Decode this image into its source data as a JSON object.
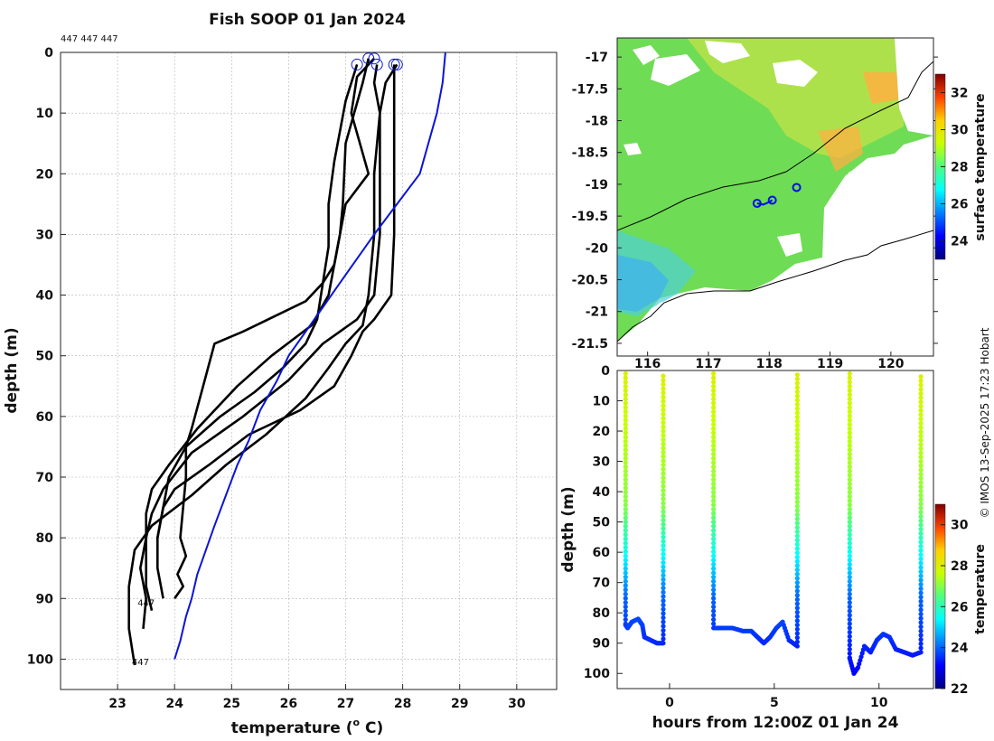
{
  "title": "Fish SOOP 01 Jan 2024",
  "profile_tags": "447 447 447",
  "credit": "© IMOS 13-Sep-2025 17:23 Hobart",
  "colors": {
    "profile": "#000000",
    "climatology": "#0a14d8",
    "grid": "#b4b4b4",
    "land_white": "#ffffff",
    "coast": "#000000"
  },
  "chart_data": [
    {
      "id": "profiles",
      "type": "line",
      "title": "Fish SOOP 01 Jan 2024",
      "xlabel": "temperature (",
      "xlabel_sup": "o",
      "xlabel_end": " C)",
      "ylabel": "depth (m)",
      "xlim": [
        22,
        30.7
      ],
      "ylim": [
        105,
        0
      ],
      "xticks": [
        23,
        24,
        25,
        26,
        27,
        28,
        29,
        30
      ],
      "yticks": [
        0,
        10,
        20,
        30,
        40,
        50,
        60,
        70,
        80,
        90,
        100
      ],
      "grid": true,
      "point_labels": [
        {
          "text": "447",
          "x": 23.35,
          "y": 91.2
        },
        {
          "text": "447",
          "x": 23.25,
          "y": 101
        }
      ],
      "series": [
        {
          "name": "profile 1",
          "x": [
            27.5,
            27.2,
            27.1,
            27.4,
            27.0,
            26.9,
            26.8,
            26.6,
            26.3,
            25.2,
            24.7,
            24.5,
            24.3,
            24.2,
            24.2,
            24.1,
            24.2,
            24.05,
            24.15,
            24.0
          ],
          "y": [
            1,
            4,
            10,
            20,
            25,
            30,
            35,
            38,
            41,
            46,
            48,
            55,
            62,
            65,
            70,
            80,
            83,
            86,
            88,
            90
          ]
        },
        {
          "name": "profile 2",
          "x": [
            27.4,
            27.3,
            27.0,
            26.95,
            26.9,
            26.8,
            26.7,
            26.4,
            25.7,
            25.1,
            24.4,
            23.9,
            23.6,
            23.5,
            23.5,
            23.4,
            23.5,
            23.45
          ],
          "y": [
            1,
            5,
            15,
            25,
            30,
            35,
            40,
            45,
            50,
            55,
            62,
            68,
            72,
            76,
            80,
            85,
            90,
            95
          ]
        },
        {
          "name": "profile 3",
          "x": [
            27.9,
            27.7,
            27.6,
            27.5,
            27.5,
            27.4,
            27.3,
            27.0,
            26.7,
            26.3,
            25.6,
            24.9,
            24.3,
            23.6,
            23.3,
            23.2,
            23.2,
            23.3
          ],
          "y": [
            2,
            5,
            10,
            20,
            30,
            40,
            45,
            48,
            52,
            57,
            63,
            68,
            73,
            78,
            82,
            88,
            95,
            101
          ]
        },
        {
          "name": "profile 4",
          "x": [
            27.55,
            27.5,
            27.6,
            27.6,
            27.6,
            27.5,
            27.2,
            26.6,
            26.0,
            25.2,
            24.3,
            23.8,
            23.6,
            23.5,
            23.5,
            23.5,
            23.6
          ],
          "y": [
            2,
            5,
            10,
            20,
            30,
            40,
            44,
            48,
            54,
            60,
            66,
            72,
            76,
            80,
            84,
            88,
            92
          ]
        },
        {
          "name": "profile 5",
          "x": [
            27.85,
            27.85,
            27.85,
            27.85,
            27.8,
            27.5,
            27.3,
            27.1,
            26.8,
            26.2,
            25.3,
            24.6,
            24.0,
            23.8,
            23.7,
            23.7,
            23.8
          ],
          "y": [
            2,
            10,
            20,
            30,
            40,
            44,
            46,
            50,
            55,
            59,
            63,
            68,
            72,
            75,
            80,
            85,
            90
          ]
        },
        {
          "name": "profile 6",
          "x": [
            27.2,
            27.0,
            26.8,
            26.7,
            26.7,
            26.6,
            26.5,
            26.3,
            25.9,
            25.4,
            24.8,
            24.2,
            23.9,
            23.8,
            23.7
          ],
          "y": [
            2,
            8,
            18,
            25,
            32,
            38,
            44,
            48,
            52,
            56,
            60,
            65,
            70,
            75,
            80
          ]
        },
        {
          "name": "climatology",
          "x": [
            28.75,
            28.7,
            28.6,
            28.3,
            27.9,
            27.5,
            27.2,
            26.9,
            26.6,
            26.3,
            26.0,
            25.8,
            25.5,
            25.3,
            25.1,
            24.9,
            24.7,
            24.55,
            24.4,
            24.3,
            24.2,
            24.1,
            24.0
          ],
          "y": [
            0,
            5,
            10,
            20,
            25,
            30,
            34,
            38,
            42,
            46,
            50,
            54,
            59,
            64,
            68,
            73,
            78,
            82,
            86,
            90,
            93,
            97,
            100
          ]
        }
      ]
    },
    {
      "id": "sst_map",
      "type": "heatmap",
      "xlabel": "",
      "ylabel": "",
      "xlim": [
        115.5,
        120.7
      ],
      "ylim": [
        -21.7,
        -16.7
      ],
      "xticks": [
        116,
        117,
        118,
        119,
        120
      ],
      "yticks": [
        -17,
        -17.5,
        -18,
        -18.5,
        -19,
        -19.5,
        -20,
        -20.5,
        -21,
        -21.5
      ],
      "colorbar": {
        "label": "surface temperature",
        "range": [
          23,
          33
        ],
        "ticks": [
          24,
          26,
          28,
          30,
          32
        ]
      },
      "track": {
        "lon": [
          117.8,
          117.9,
          118.0,
          118.05
        ],
        "lat": [
          -19.3,
          -19.32,
          -19.28,
          -19.25
        ]
      },
      "stations": [
        {
          "lon": 117.8,
          "lat": -19.3
        },
        {
          "lon": 118.05,
          "lat": -19.25
        },
        {
          "lon": 118.45,
          "lat": -19.05
        }
      ],
      "grid": true
    },
    {
      "id": "time_depth",
      "type": "scatter",
      "xlabel": "hours from 12:00Z 01 Jan 24",
      "ylabel": "depth (m)",
      "xlim": [
        -2.5,
        12.6
      ],
      "ylim": [
        105,
        0
      ],
      "xticks": [
        0,
        5,
        10
      ],
      "yticks": [
        0,
        10,
        20,
        30,
        40,
        50,
        60,
        70,
        80,
        90,
        100
      ],
      "colorbar": {
        "label": "temperature",
        "range": [
          22,
          31
        ],
        "ticks": [
          22,
          24,
          26,
          28,
          30
        ]
      },
      "casts": [
        {
          "t_down": -2.1,
          "t_up": -0.3,
          "bottom": [
            [
              -2.1,
              84
            ],
            [
              -2.0,
              85
            ],
            [
              -1.8,
              83
            ],
            [
              -1.5,
              82
            ],
            [
              -1.3,
              84
            ],
            [
              -1.2,
              88
            ],
            [
              -0.9,
              89
            ],
            [
              -0.6,
              90
            ],
            [
              -0.3,
              90
            ]
          ]
        },
        {
          "t_down": 2.1,
          "t_up": 6.1,
          "bottom": [
            [
              2.1,
              85
            ],
            [
              2.5,
              85
            ],
            [
              3.0,
              85
            ],
            [
              3.5,
              86
            ],
            [
              3.9,
              86
            ],
            [
              4.2,
              88
            ],
            [
              4.5,
              90
            ],
            [
              4.8,
              88
            ],
            [
              5.1,
              85
            ],
            [
              5.4,
              83
            ],
            [
              5.7,
              89
            ],
            [
              6.1,
              91
            ]
          ]
        },
        {
          "t_down": 8.6,
          "t_up": 12.0,
          "bottom": [
            [
              8.6,
              95
            ],
            [
              8.8,
              100
            ],
            [
              9.0,
              98
            ],
            [
              9.3,
              91
            ],
            [
              9.6,
              93
            ],
            [
              9.9,
              89
            ],
            [
              10.2,
              87
            ],
            [
              10.5,
              88
            ],
            [
              10.8,
              92
            ],
            [
              11.2,
              93
            ],
            [
              11.6,
              94
            ],
            [
              12.0,
              93
            ]
          ]
        }
      ]
    }
  ]
}
